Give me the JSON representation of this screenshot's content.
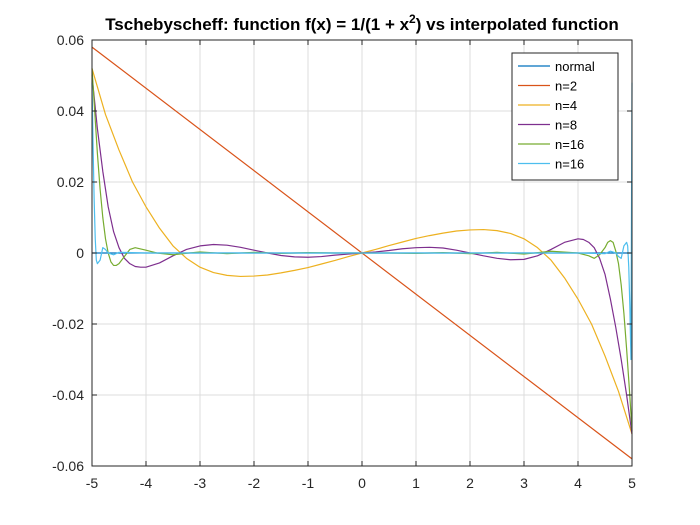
{
  "chart_data": {
    "type": "line",
    "title": {
      "prefix": "Tschebyscheff: function  f(x) = 1/(1 + x",
      "superscript": "2",
      "suffix": ") vs interpolated function"
    },
    "xlabel": "",
    "ylabel": "",
    "xlim": [
      -5,
      5
    ],
    "ylim": [
      -0.06,
      0.06
    ],
    "x_ticks": [
      -5,
      -4,
      -3,
      -2,
      -1,
      0,
      1,
      2,
      3,
      4,
      5
    ],
    "x_tick_labels": [
      "-5",
      "-4",
      "-3",
      "-2",
      "-1",
      "0",
      "1",
      "2",
      "3",
      "4",
      "5"
    ],
    "y_ticks": [
      -0.06,
      -0.04,
      -0.02,
      0,
      0.02,
      0.04,
      0.06
    ],
    "y_tick_labels": [
      "-0.06",
      "-0.04",
      "-0.02",
      "0",
      "0.02",
      "0.04",
      "0.06"
    ],
    "grid": true,
    "legend_position": "top-right",
    "series": [
      {
        "name": "normal",
        "color": "#0072BD",
        "x": [
          -5,
          5
        ],
        "y": [
          0,
          0
        ]
      },
      {
        "name": "n=2",
        "color": "#D95319",
        "x": [
          -5,
          5
        ],
        "y": [
          0.058,
          -0.058
        ]
      },
      {
        "name": "n=4",
        "color": "#EDB120",
        "x": [
          -5,
          -4.75,
          -4.5,
          -4.25,
          -4,
          -3.75,
          -3.5,
          -3.25,
          -3,
          -2.75,
          -2.5,
          -2.25,
          -2,
          -1.75,
          -1.5,
          -1.25,
          -1,
          -0.75,
          -0.5,
          -0.25,
          0,
          0.25,
          0.5,
          0.75,
          1,
          1.25,
          1.5,
          1.75,
          2,
          2.25,
          2.5,
          2.75,
          3,
          3.25,
          3.5,
          3.75,
          4,
          4.25,
          4.5,
          4.75,
          5
        ],
        "y": [
          0.052,
          0.039,
          0.029,
          0.02,
          0.013,
          0.007,
          0.002,
          -0.0015,
          -0.004,
          -0.0055,
          -0.0063,
          -0.0066,
          -0.0065,
          -0.0062,
          -0.0056,
          -0.0049,
          -0.0041,
          -0.0031,
          -0.0021,
          -0.001,
          0,
          0.001,
          0.0021,
          0.0031,
          0.0041,
          0.0049,
          0.0056,
          0.0062,
          0.0065,
          0.0066,
          0.0063,
          0.0055,
          0.004,
          0.0015,
          -0.002,
          -0.007,
          -0.013,
          -0.02,
          -0.029,
          -0.039,
          -0.051
        ]
      },
      {
        "name": "n=8",
        "color": "#7E2F8E",
        "x": [
          -5,
          -4.9,
          -4.8,
          -4.7,
          -4.6,
          -4.5,
          -4.4,
          -4.3,
          -4.2,
          -4.1,
          -4,
          -3.75,
          -3.5,
          -3.25,
          -3,
          -2.75,
          -2.5,
          -2.25,
          -2,
          -1.75,
          -1.5,
          -1.25,
          -1,
          -0.75,
          -0.5,
          -0.25,
          0,
          0.25,
          0.5,
          0.75,
          1,
          1.25,
          1.5,
          1.75,
          2,
          2.25,
          2.5,
          2.75,
          3,
          3.25,
          3.5,
          3.75,
          4,
          4.1,
          4.2,
          4.3,
          4.4,
          4.5,
          4.6,
          4.7,
          4.8,
          4.9,
          5
        ],
        "y": [
          0.05,
          0.035,
          0.023,
          0.013,
          0.006,
          0.0015,
          -0.0015,
          -0.003,
          -0.0038,
          -0.004,
          -0.004,
          -0.0028,
          -0.0008,
          0.001,
          0.002,
          0.0024,
          0.0022,
          0.0016,
          0.0008,
          0,
          -0.0007,
          -0.0011,
          -0.0012,
          -0.001,
          -0.0006,
          -0.0003,
          0,
          0.0003,
          0.0007,
          0.0012,
          0.0015,
          0.0016,
          0.0014,
          0.0008,
          0,
          -0.0008,
          -0.0015,
          -0.0019,
          -0.0018,
          -0.0008,
          0.001,
          0.003,
          0.004,
          0.0038,
          0.003,
          0.0015,
          -0.0015,
          -0.006,
          -0.013,
          -0.021,
          -0.03,
          -0.04,
          -0.051
        ]
      },
      {
        "name": "n=16",
        "color": "#77AC30",
        "x": [
          -5,
          -4.95,
          -4.9,
          -4.85,
          -4.8,
          -4.75,
          -4.7,
          -4.65,
          -4.6,
          -4.55,
          -4.5,
          -4.4,
          -4.3,
          -4.2,
          -4,
          -3.8,
          -3.5,
          -3.2,
          -3,
          -2.5,
          -2,
          -1.5,
          -1,
          -0.5,
          0,
          0.5,
          1,
          1.5,
          2,
          2.5,
          3,
          3.5,
          4,
          4.2,
          4.3,
          4.4,
          4.5,
          4.55,
          4.6,
          4.65,
          4.7,
          4.75,
          4.8,
          4.85,
          4.9,
          4.95,
          5
        ],
        "y": [
          0.052,
          0.04,
          0.028,
          0.018,
          0.01,
          0.004,
          0,
          -0.0025,
          -0.0035,
          -0.0035,
          -0.003,
          -0.001,
          0.001,
          0.0015,
          0.0008,
          0,
          -0.0005,
          0,
          0.0003,
          -0.0002,
          0.0002,
          -0.0001,
          0.0001,
          0,
          0,
          0,
          -0.0001,
          0.0001,
          -0.0002,
          0.0002,
          -0.0003,
          0.0005,
          0,
          -0.0008,
          -0.0015,
          -0.0005,
          0.0015,
          0.003,
          0.0035,
          0.003,
          0.0005,
          -0.003,
          -0.009,
          -0.017,
          -0.027,
          -0.038,
          -0.05
        ]
      },
      {
        "name": "n=16",
        "color": "#4DBEEE",
        "x": [
          -5,
          -4.98,
          -4.96,
          -4.94,
          -4.92,
          -4.9,
          -4.85,
          -4.8,
          -4.75,
          -4.7,
          -4.6,
          -4.5,
          -4,
          -3,
          -2,
          -1,
          0,
          1,
          2,
          3,
          4,
          4.5,
          4.6,
          4.7,
          4.75,
          4.8,
          4.85,
          4.9,
          4.92,
          4.94,
          4.96,
          4.98,
          5
        ],
        "y": [
          0.048,
          0.03,
          0.015,
          0.004,
          -0.002,
          -0.003,
          -0.002,
          0.0015,
          0.001,
          0,
          -0.0005,
          0.0002,
          0,
          0,
          0,
          0,
          0,
          0,
          0,
          0,
          0,
          -0.0002,
          0.0005,
          0,
          -0.001,
          -0.0015,
          0.002,
          0.003,
          0.002,
          -0.004,
          -0.015,
          -0.03,
          0.048
        ]
      }
    ]
  }
}
